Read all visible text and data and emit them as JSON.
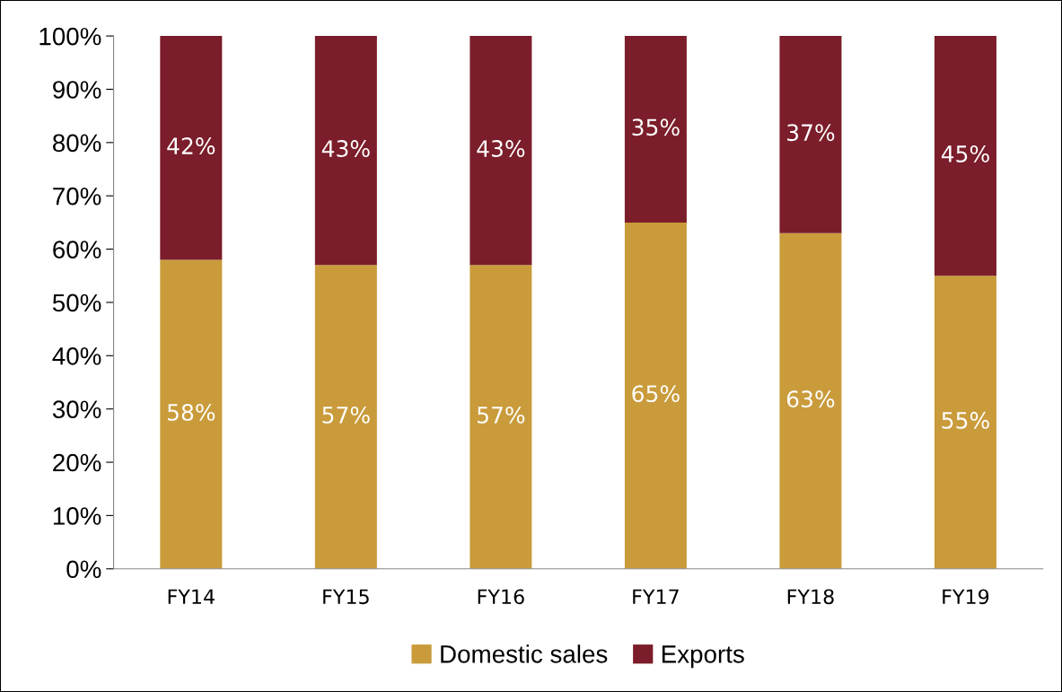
{
  "chart_data": {
    "type": "bar",
    "stacked": true,
    "categories": [
      "FY14",
      "FY15",
      "FY16",
      "FY17",
      "FY18",
      "FY19"
    ],
    "series": [
      {
        "name": "Domestic sales",
        "color": "#c99b3b",
        "values": [
          58,
          57,
          57,
          65,
          63,
          55
        ],
        "value_labels": [
          "58%",
          "57%",
          "57%",
          "65%",
          "63%",
          "55%"
        ]
      },
      {
        "name": "Exports",
        "color": "#7b1d2a",
        "values": [
          42,
          43,
          43,
          35,
          37,
          45
        ],
        "value_labels": [
          "42%",
          "43%",
          "43%",
          "35%",
          "37%",
          "45%"
        ]
      }
    ],
    "ylim": [
      0,
      100
    ],
    "yticks": [
      {
        "value": 0,
        "label": "0%"
      },
      {
        "value": 10,
        "label": "10%"
      },
      {
        "value": 20,
        "label": "20%"
      },
      {
        "value": 30,
        "label": "30%"
      },
      {
        "value": 40,
        "label": "40%"
      },
      {
        "value": 50,
        "label": "50%"
      },
      {
        "value": 60,
        "label": "60%"
      },
      {
        "value": 70,
        "label": "70%"
      },
      {
        "value": 80,
        "label": "80%"
      },
      {
        "value": 90,
        "label": "90%"
      },
      {
        "value": 100,
        "label": "100%"
      }
    ],
    "grid": false,
    "legend": "bottom"
  }
}
